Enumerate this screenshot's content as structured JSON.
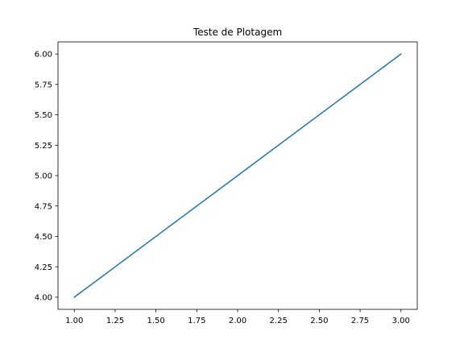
{
  "chart_data": {
    "type": "line",
    "title": "Teste de Plotagem",
    "xlabel": "",
    "ylabel": "",
    "xlim": [
      0.9,
      3.1
    ],
    "ylim": [
      3.9,
      6.1
    ],
    "x_ticks": [
      1.0,
      1.25,
      1.5,
      1.75,
      2.0,
      2.25,
      2.5,
      2.75,
      3.0
    ],
    "x_tick_labels": [
      "1.00",
      "1.25",
      "1.50",
      "1.75",
      "2.00",
      "2.25",
      "2.50",
      "2.75",
      "3.00"
    ],
    "y_ticks": [
      4.0,
      4.25,
      4.5,
      4.75,
      5.0,
      5.25,
      5.5,
      5.75,
      6.0
    ],
    "y_tick_labels": [
      "4.00",
      "4.25",
      "4.50",
      "4.75",
      "5.00",
      "5.25",
      "5.50",
      "5.75",
      "6.00"
    ],
    "grid": false,
    "series": [
      {
        "x": [
          1,
          2,
          3
        ],
        "y": [
          4,
          5,
          6
        ],
        "color": "#1f77b4"
      }
    ]
  }
}
